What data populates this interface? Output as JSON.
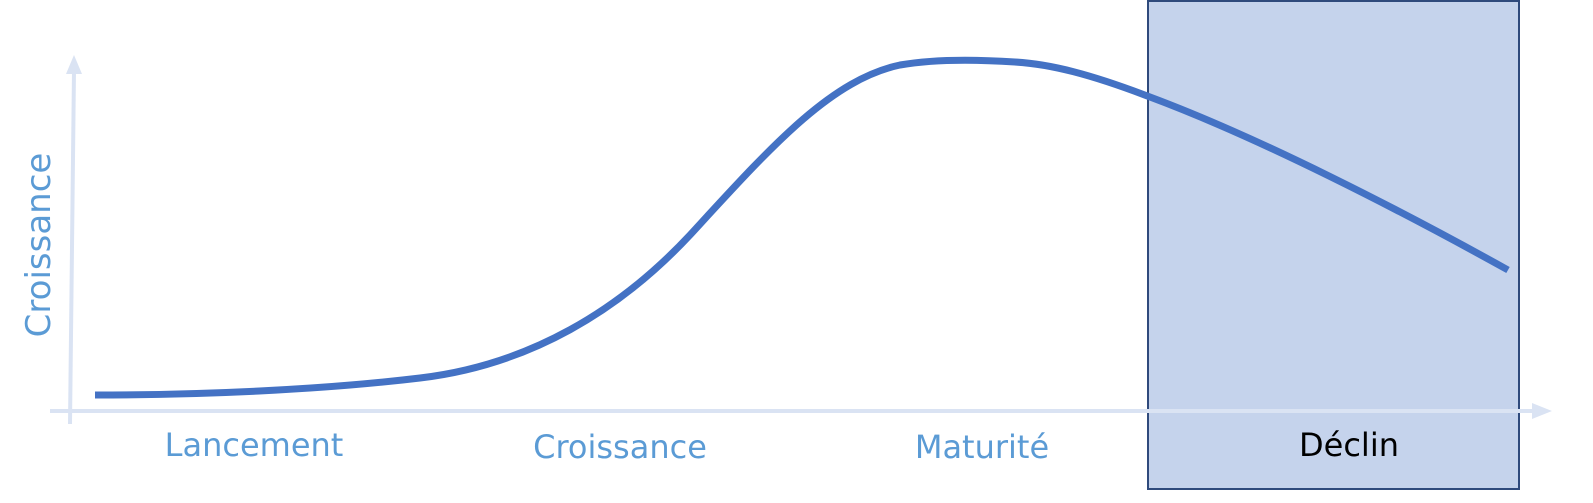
{
  "diagram": {
    "y_axis_label": "Croissance",
    "stages": [
      {
        "label": "Lancement",
        "highlighted": false
      },
      {
        "label": "Croissance",
        "highlighted": false
      },
      {
        "label": "Maturité",
        "highlighted": false
      },
      {
        "label": "Déclin",
        "highlighted": true
      }
    ],
    "colors": {
      "curve": "#4472C4",
      "axis": "#DAE3F3",
      "label": "#5B9BD5",
      "highlight_fill": "#C5D3EC",
      "highlight_border": "#2F4A7C",
      "highlight_label": "#000000"
    }
  }
}
